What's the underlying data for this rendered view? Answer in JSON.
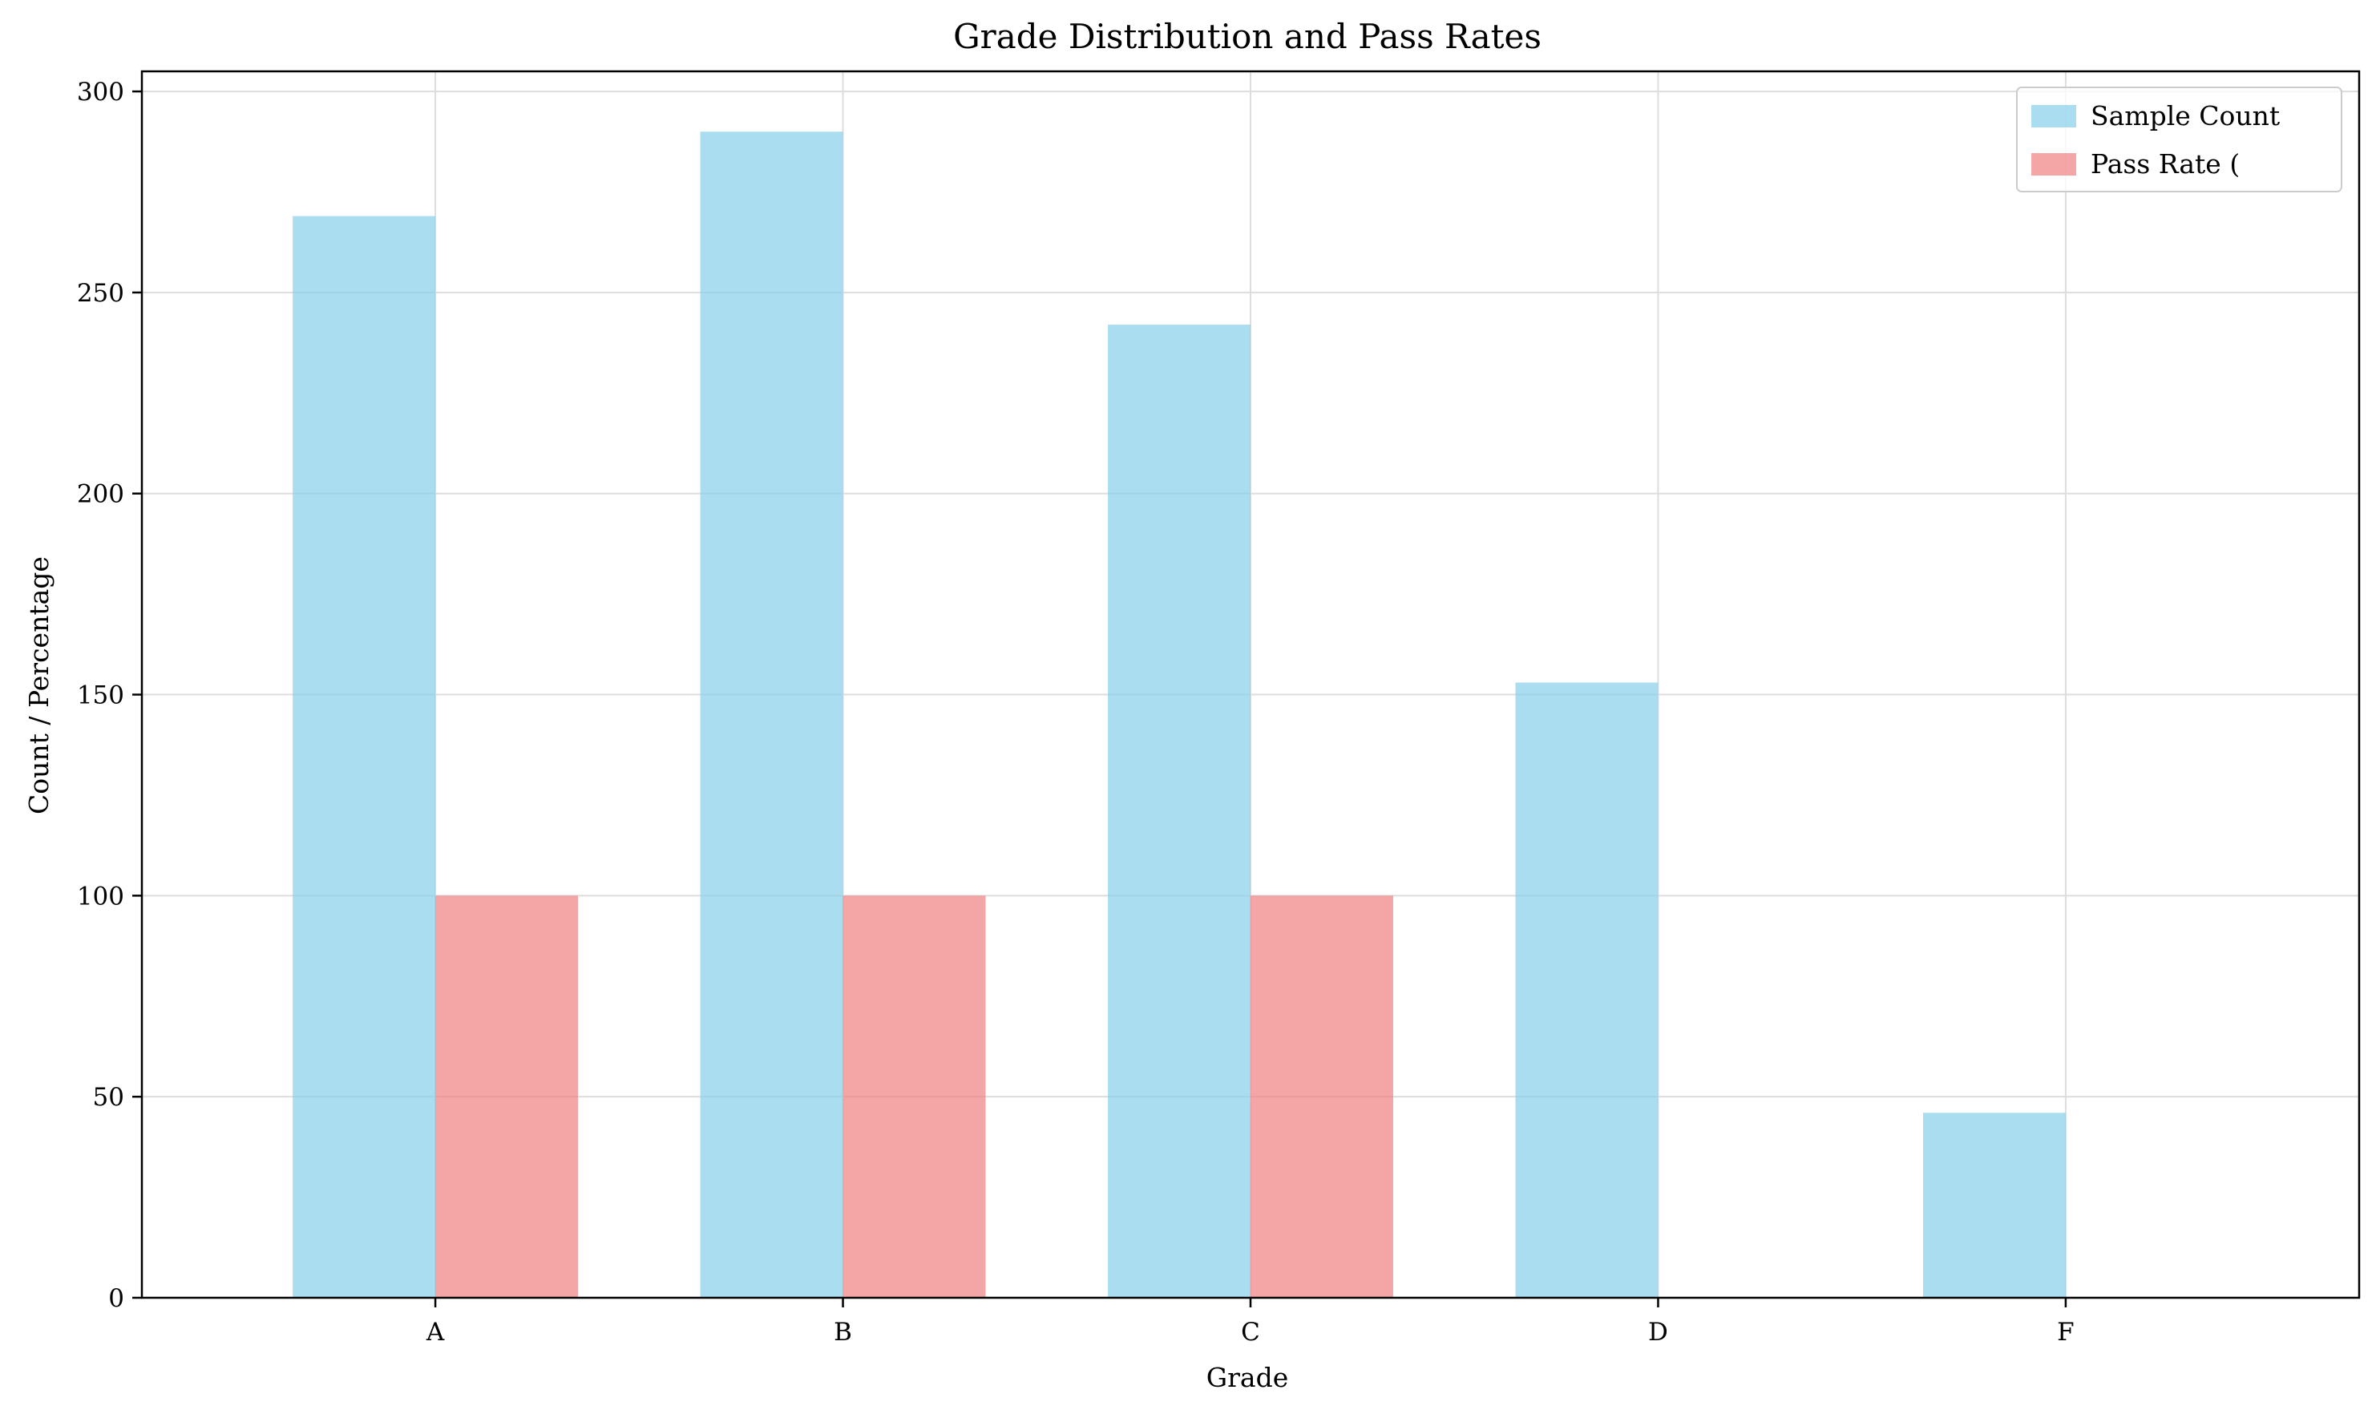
{
  "chart_data": {
    "type": "bar",
    "title": "Grade Distribution and Pass Rates",
    "xlabel": "Grade",
    "ylabel": "Count / Percentage",
    "categories": [
      "A",
      "B",
      "C",
      "D",
      "F"
    ],
    "series": [
      {
        "name": "Sample Count",
        "values": [
          269,
          290,
          242,
          153,
          46
        ],
        "color": "#87CEEB",
        "opacity": 0.7
      },
      {
        "name": "Pass Rate (",
        "values": [
          100,
          100,
          100,
          0,
          0
        ],
        "color": "#F08080",
        "opacity": 0.7
      }
    ],
    "ylim": [
      0,
      305
    ],
    "yticks": [
      0,
      50,
      100,
      150,
      200,
      250,
      300
    ],
    "grid": true,
    "legend_position": "top-right",
    "colors": {
      "grid": "#dddddd",
      "axis": "#000000"
    }
  }
}
